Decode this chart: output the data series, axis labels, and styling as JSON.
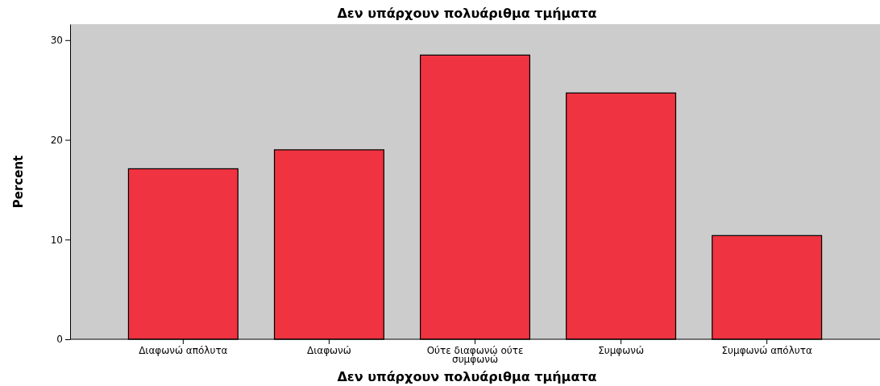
{
  "chart_data": {
    "type": "bar",
    "title": "Δεν υπάρχουν πολυάριθμα τμήματα",
    "xlabel": "Δεν υπάρχουν πολυάριθμα τμήματα",
    "ylabel": "Percent",
    "categories": [
      "Διαφωνώ απόλυτα",
      "Διαφωνώ",
      "Ούτε διαφωνώ ούτε συμφωνώ",
      "Συμφωνώ",
      "Συμφωνώ απόλυτα"
    ],
    "values": [
      17.1,
      19.0,
      28.5,
      24.7,
      10.4
    ],
    "color": "#ef3340",
    "ylim": [
      0,
      31.6
    ],
    "yticks": [
      0,
      10,
      20,
      30
    ],
    "grid": false
  }
}
